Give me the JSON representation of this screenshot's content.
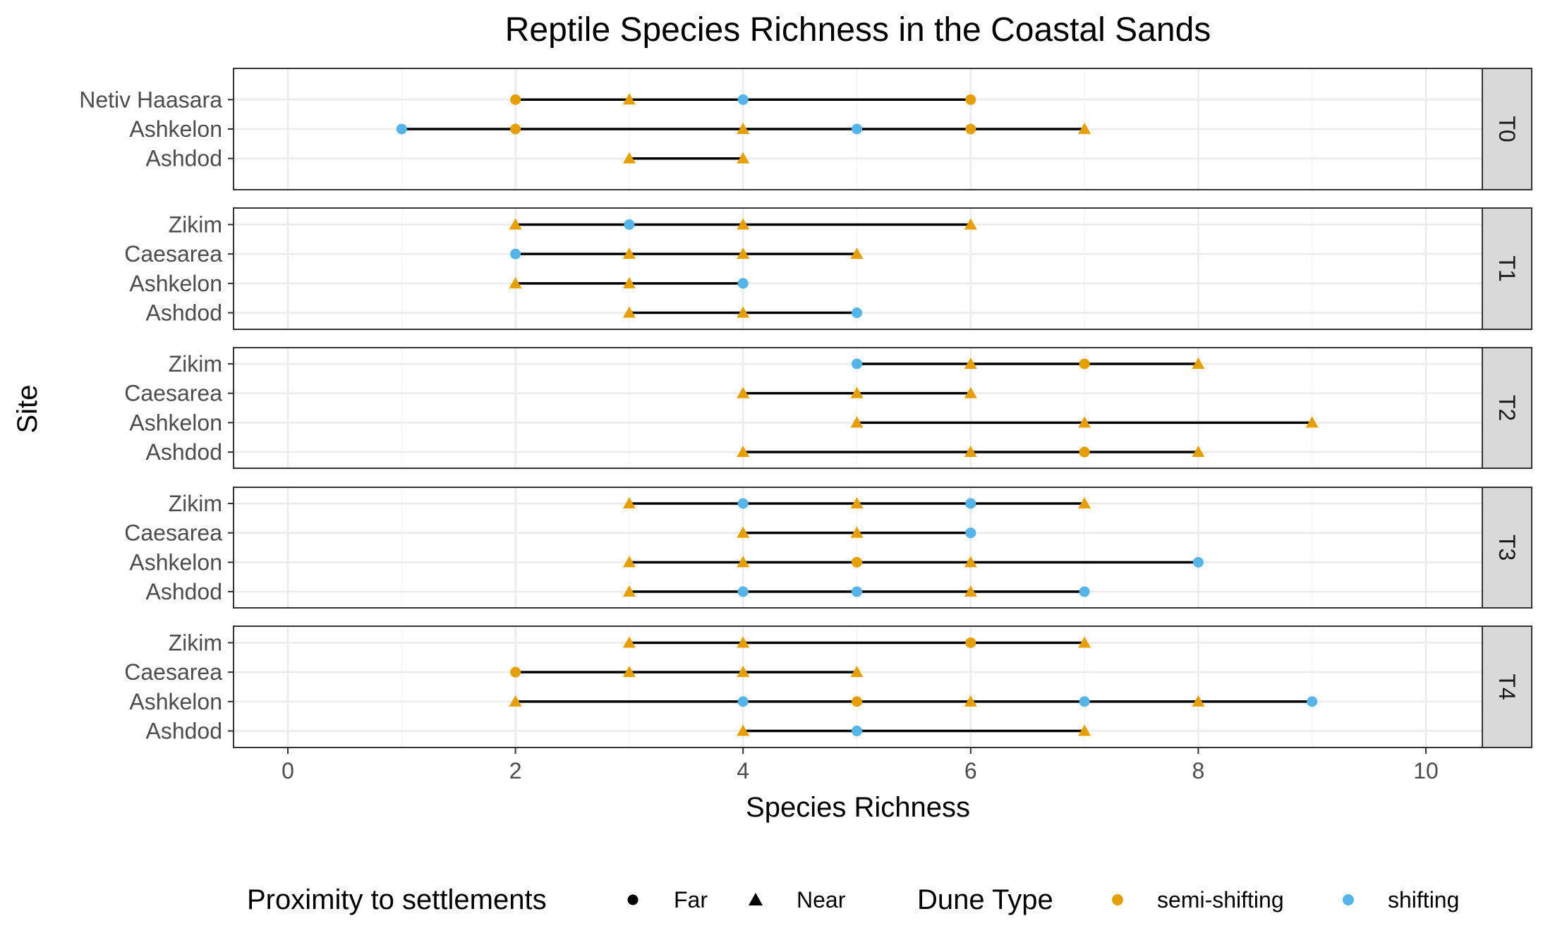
{
  "chart_data": {
    "type": "dumbbell",
    "title": "Reptile Species Richness in the Coastal Sands",
    "xlabel": "Species Richness",
    "ylabel": "Site",
    "xlim": [
      -0.5,
      10.5
    ],
    "x_ticks": [
      0,
      2,
      4,
      6,
      8,
      10
    ],
    "grid": true,
    "legend_position": "bottom",
    "legends": [
      {
        "title": "Proximity to settlements",
        "kind": "shape",
        "items": [
          {
            "label": "Far",
            "shape": "circle"
          },
          {
            "label": "Near",
            "shape": "triangle"
          }
        ]
      },
      {
        "title": "Dune Type",
        "kind": "color",
        "items": [
          {
            "label": "semi-shifting",
            "color": "#E69F00"
          },
          {
            "label": "shifting",
            "color": "#56B4E9"
          }
        ]
      }
    ],
    "colors": {
      "semi-shifting": "#E69F00",
      "shifting": "#56B4E9",
      "segment": "#000000",
      "strip": "#D9D9D9"
    },
    "panels": [
      {
        "name": "T0",
        "sites": [
          {
            "site": "Netiv Haasara",
            "points": [
              {
                "x": 2,
                "prox": "Far",
                "dune": "semi-shifting"
              },
              {
                "x": 3,
                "prox": "Near",
                "dune": "semi-shifting"
              },
              {
                "x": 4,
                "prox": "Far",
                "dune": "shifting"
              },
              {
                "x": 6,
                "prox": "Far",
                "dune": "semi-shifting"
              }
            ]
          },
          {
            "site": "Ashkelon",
            "points": [
              {
                "x": 1,
                "prox": "Far",
                "dune": "shifting"
              },
              {
                "x": 2,
                "prox": "Far",
                "dune": "semi-shifting"
              },
              {
                "x": 4,
                "prox": "Near",
                "dune": "semi-shifting"
              },
              {
                "x": 5,
                "prox": "Far",
                "dune": "shifting"
              },
              {
                "x": 6,
                "prox": "Far",
                "dune": "semi-shifting"
              },
              {
                "x": 7,
                "prox": "Near",
                "dune": "semi-shifting"
              }
            ]
          },
          {
            "site": "Ashdod",
            "points": [
              {
                "x": 3,
                "prox": "Near",
                "dune": "semi-shifting"
              },
              {
                "x": 4,
                "prox": "Near",
                "dune": "semi-shifting"
              }
            ]
          }
        ]
      },
      {
        "name": "T1",
        "sites": [
          {
            "site": "Zikim",
            "points": [
              {
                "x": 2,
                "prox": "Near",
                "dune": "semi-shifting"
              },
              {
                "x": 3,
                "prox": "Far",
                "dune": "shifting"
              },
              {
                "x": 4,
                "prox": "Near",
                "dune": "semi-shifting"
              },
              {
                "x": 6,
                "prox": "Near",
                "dune": "semi-shifting"
              }
            ]
          },
          {
            "site": "Caesarea",
            "points": [
              {
                "x": 2,
                "prox": "Far",
                "dune": "shifting"
              },
              {
                "x": 3,
                "prox": "Near",
                "dune": "semi-shifting"
              },
              {
                "x": 4,
                "prox": "Near",
                "dune": "semi-shifting"
              },
              {
                "x": 5,
                "prox": "Near",
                "dune": "semi-shifting"
              }
            ]
          },
          {
            "site": "Ashkelon",
            "points": [
              {
                "x": 2,
                "prox": "Near",
                "dune": "semi-shifting"
              },
              {
                "x": 3,
                "prox": "Near",
                "dune": "semi-shifting"
              },
              {
                "x": 4,
                "prox": "Far",
                "dune": "shifting"
              }
            ]
          },
          {
            "site": "Ashdod",
            "points": [
              {
                "x": 3,
                "prox": "Near",
                "dune": "semi-shifting"
              },
              {
                "x": 4,
                "prox": "Near",
                "dune": "semi-shifting"
              },
              {
                "x": 5,
                "prox": "Far",
                "dune": "shifting"
              }
            ]
          }
        ]
      },
      {
        "name": "T2",
        "sites": [
          {
            "site": "Zikim",
            "points": [
              {
                "x": 5,
                "prox": "Far",
                "dune": "shifting"
              },
              {
                "x": 6,
                "prox": "Near",
                "dune": "semi-shifting"
              },
              {
                "x": 7,
                "prox": "Far",
                "dune": "semi-shifting"
              },
              {
                "x": 8,
                "prox": "Near",
                "dune": "semi-shifting"
              }
            ]
          },
          {
            "site": "Caesarea",
            "points": [
              {
                "x": 4,
                "prox": "Near",
                "dune": "semi-shifting"
              },
              {
                "x": 5,
                "prox": "Near",
                "dune": "semi-shifting"
              },
              {
                "x": 6,
                "prox": "Near",
                "dune": "semi-shifting"
              }
            ]
          },
          {
            "site": "Ashkelon",
            "points": [
              {
                "x": 5,
                "prox": "Near",
                "dune": "semi-shifting"
              },
              {
                "x": 7,
                "prox": "Near",
                "dune": "semi-shifting"
              },
              {
                "x": 9,
                "prox": "Near",
                "dune": "semi-shifting"
              }
            ]
          },
          {
            "site": "Ashdod",
            "points": [
              {
                "x": 4,
                "prox": "Near",
                "dune": "semi-shifting"
              },
              {
                "x": 6,
                "prox": "Near",
                "dune": "semi-shifting"
              },
              {
                "x": 7,
                "prox": "Far",
                "dune": "semi-shifting"
              },
              {
                "x": 8,
                "prox": "Near",
                "dune": "semi-shifting"
              }
            ]
          }
        ]
      },
      {
        "name": "T3",
        "sites": [
          {
            "site": "Zikim",
            "points": [
              {
                "x": 3,
                "prox": "Near",
                "dune": "semi-shifting"
              },
              {
                "x": 4,
                "prox": "Far",
                "dune": "shifting"
              },
              {
                "x": 5,
                "prox": "Near",
                "dune": "semi-shifting"
              },
              {
                "x": 6,
                "prox": "Far",
                "dune": "shifting"
              },
              {
                "x": 7,
                "prox": "Near",
                "dune": "semi-shifting"
              }
            ]
          },
          {
            "site": "Caesarea",
            "points": [
              {
                "x": 4,
                "prox": "Near",
                "dune": "semi-shifting"
              },
              {
                "x": 5,
                "prox": "Near",
                "dune": "semi-shifting"
              },
              {
                "x": 6,
                "prox": "Far",
                "dune": "shifting"
              }
            ]
          },
          {
            "site": "Ashkelon",
            "points": [
              {
                "x": 3,
                "prox": "Near",
                "dune": "semi-shifting"
              },
              {
                "x": 4,
                "prox": "Near",
                "dune": "semi-shifting"
              },
              {
                "x": 5,
                "prox": "Far",
                "dune": "semi-shifting"
              },
              {
                "x": 6,
                "prox": "Near",
                "dune": "semi-shifting"
              },
              {
                "x": 8,
                "prox": "Far",
                "dune": "shifting"
              }
            ]
          },
          {
            "site": "Ashdod",
            "points": [
              {
                "x": 3,
                "prox": "Near",
                "dune": "semi-shifting"
              },
              {
                "x": 4,
                "prox": "Far",
                "dune": "shifting"
              },
              {
                "x": 5,
                "prox": "Far",
                "dune": "shifting"
              },
              {
                "x": 6,
                "prox": "Near",
                "dune": "semi-shifting"
              },
              {
                "x": 7,
                "prox": "Far",
                "dune": "shifting"
              }
            ]
          }
        ]
      },
      {
        "name": "T4",
        "sites": [
          {
            "site": "Zikim",
            "points": [
              {
                "x": 3,
                "prox": "Near",
                "dune": "semi-shifting"
              },
              {
                "x": 4,
                "prox": "Near",
                "dune": "semi-shifting"
              },
              {
                "x": 6,
                "prox": "Far",
                "dune": "semi-shifting"
              },
              {
                "x": 7,
                "prox": "Near",
                "dune": "semi-shifting"
              }
            ]
          },
          {
            "site": "Caesarea",
            "points": [
              {
                "x": 2,
                "prox": "Far",
                "dune": "semi-shifting"
              },
              {
                "x": 3,
                "prox": "Near",
                "dune": "semi-shifting"
              },
              {
                "x": 4,
                "prox": "Near",
                "dune": "semi-shifting"
              },
              {
                "x": 5,
                "prox": "Near",
                "dune": "semi-shifting"
              }
            ]
          },
          {
            "site": "Ashkelon",
            "points": [
              {
                "x": 2,
                "prox": "Near",
                "dune": "semi-shifting"
              },
              {
                "x": 4,
                "prox": "Far",
                "dune": "shifting"
              },
              {
                "x": 5,
                "prox": "Far",
                "dune": "semi-shifting"
              },
              {
                "x": 6,
                "prox": "Near",
                "dune": "semi-shifting"
              },
              {
                "x": 7,
                "prox": "Far",
                "dune": "shifting"
              },
              {
                "x": 8,
                "prox": "Near",
                "dune": "semi-shifting"
              },
              {
                "x": 9,
                "prox": "Far",
                "dune": "shifting"
              }
            ]
          },
          {
            "site": "Ashdod",
            "points": [
              {
                "x": 4,
                "prox": "Near",
                "dune": "semi-shifting"
              },
              {
                "x": 5,
                "prox": "Far",
                "dune": "shifting"
              },
              {
                "x": 7,
                "prox": "Near",
                "dune": "semi-shifting"
              }
            ]
          }
        ]
      }
    ]
  }
}
